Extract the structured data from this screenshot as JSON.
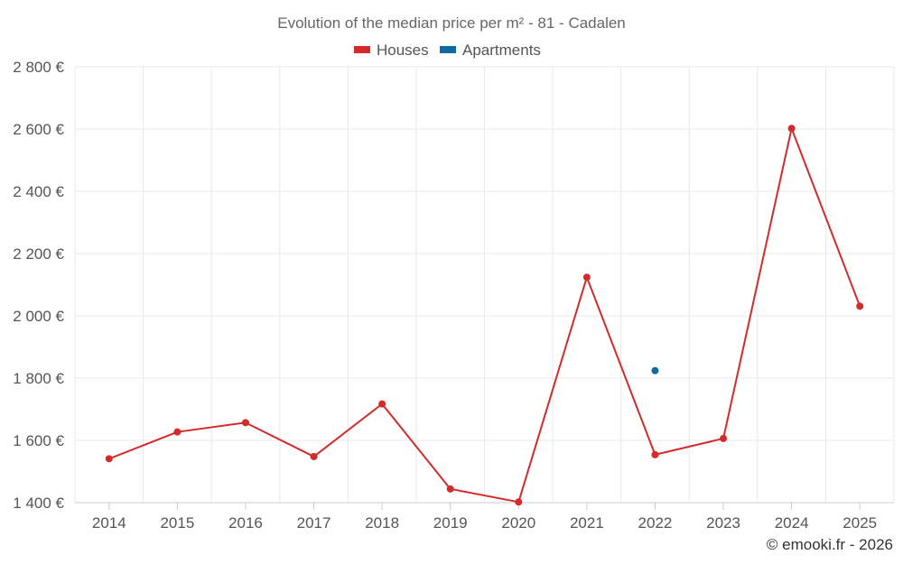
{
  "chart_data": {
    "type": "line",
    "title": "Evolution of the median price per m² - 81 - Cadalen",
    "categories": [
      "2014",
      "2015",
      "2016",
      "2017",
      "2018",
      "2019",
      "2020",
      "2021",
      "2022",
      "2023",
      "2024",
      "2025"
    ],
    "series": [
      {
        "name": "Houses",
        "color": "#d42a2a",
        "values": [
          1541,
          1627,
          1657,
          1548,
          1717,
          1444,
          1402,
          2124,
          1554,
          1606,
          2602,
          2031
        ]
      },
      {
        "name": "Apartments",
        "color": "#0e6aa0",
        "values": [
          null,
          null,
          null,
          null,
          null,
          null,
          null,
          null,
          1824,
          null,
          null,
          null
        ]
      }
    ],
    "ylim": [
      1400,
      2800
    ],
    "yticks": [
      1400,
      1600,
      1800,
      2000,
      2200,
      2400,
      2600,
      2800
    ],
    "ytick_labels": [
      "1 400 €",
      "1 600 €",
      "1 800 €",
      "2 000 €",
      "2 200 €",
      "2 400 €",
      "2 600 €",
      "2 800 €"
    ],
    "grid": true,
    "legend_position": "top-center",
    "xlabel": "",
    "ylabel": ""
  },
  "credit": "© emooki.fr - 2026"
}
